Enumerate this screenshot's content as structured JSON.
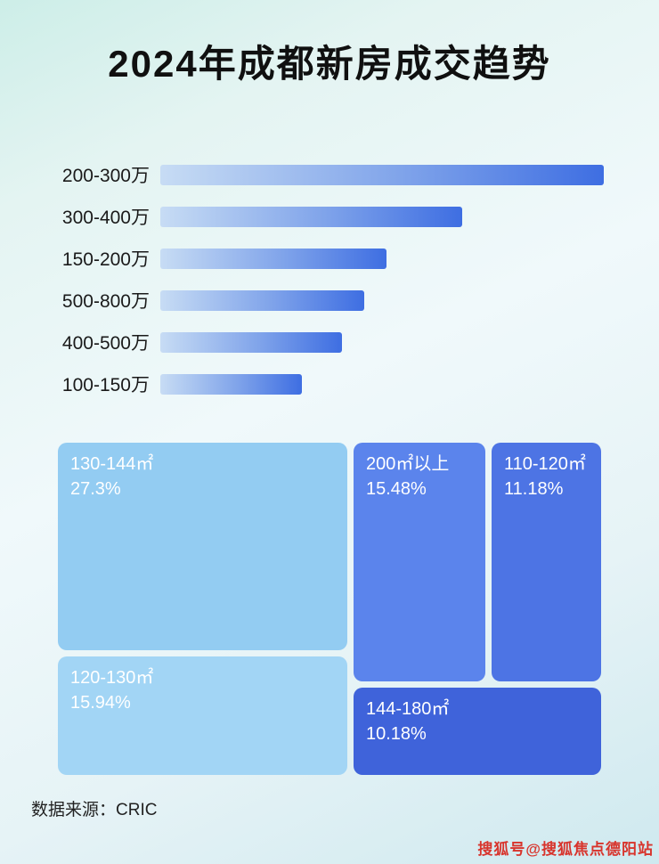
{
  "page": {
    "title": "2024年成都新房成交趋势",
    "source": "数据来源：CRIC",
    "watermark": "搜狐号@搜狐焦点德阳站"
  },
  "colors": {
    "bar_gradient_start": "#c7dcf4",
    "bar_gradient_end": "#3e6ee2",
    "title_text": "#101010",
    "watermark_text": "#d8342c",
    "background_tint": "#dff2f0"
  },
  "chart_data": [
    {
      "type": "bar",
      "orientation": "horizontal",
      "title": "2024年成都新房成交趋势",
      "categories": [
        "200-300万",
        "300-400万",
        "150-200万",
        "500-800万",
        "400-500万",
        "100-150万"
      ],
      "values": [
        100,
        68,
        51,
        46,
        41,
        32
      ],
      "value_note": "bar length as % of longest bar; no numeric axis shown in image",
      "xlabel": "",
      "ylabel": "",
      "grid": false,
      "legend": false
    },
    {
      "type": "treemap",
      "items": [
        {
          "label": "130-144㎡",
          "value": 27.3,
          "display": "27.3%",
          "color": "#93ccf2"
        },
        {
          "label": "120-130㎡",
          "value": 15.94,
          "display": "15.94%",
          "color": "#a2d5f5"
        },
        {
          "label": "200㎡以上",
          "value": 15.48,
          "display": "15.48%",
          "color": "#5b84ec"
        },
        {
          "label": "110-120㎡",
          "value": 11.18,
          "display": "11.18%",
          "color": "#4d74e4"
        },
        {
          "label": "144-180㎡",
          "value": 10.18,
          "display": "10.18%",
          "color": "#3f63da"
        }
      ]
    }
  ]
}
